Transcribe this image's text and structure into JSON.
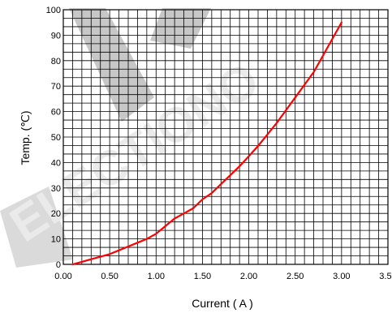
{
  "chart_data": {
    "type": "line",
    "title": "",
    "xlabel": "Current ( A )",
    "ylabel": "Temp. (℃)",
    "xlim": [
      0,
      3.5
    ],
    "ylim": [
      0,
      100
    ],
    "grid": true,
    "x_ticks": [
      "0.00",
      "0.50",
      "1.00",
      "1.50",
      "2.00",
      "2.50",
      "3.00",
      "3.50"
    ],
    "y_ticks": [
      "0",
      "10",
      "20",
      "30",
      "40",
      "50",
      "60",
      "70",
      "80",
      "90",
      "100"
    ],
    "series": [
      {
        "color": "#ff0000",
        "x": [
          0.1,
          0.2,
          0.3,
          0.4,
          0.5,
          0.6,
          0.7,
          0.8,
          0.9,
          1.0,
          1.1,
          1.2,
          1.3,
          1.4,
          1.5,
          1.6,
          1.7,
          1.8,
          1.9,
          2.0,
          2.1,
          2.2,
          2.3,
          2.4,
          2.5,
          2.6,
          2.7,
          2.8,
          2.9,
          3.0
        ],
        "y": [
          0,
          1,
          2,
          3,
          4,
          5.5,
          7,
          8.5,
          10,
          12,
          15,
          18,
          20,
          22,
          25.5,
          28,
          31.5,
          35,
          38.5,
          42.5,
          46.5,
          51,
          55.5,
          60.5,
          65.5,
          70.5,
          75.5,
          82,
          88.5,
          95
        ]
      }
    ]
  },
  "watermark": "ELECTIONO"
}
